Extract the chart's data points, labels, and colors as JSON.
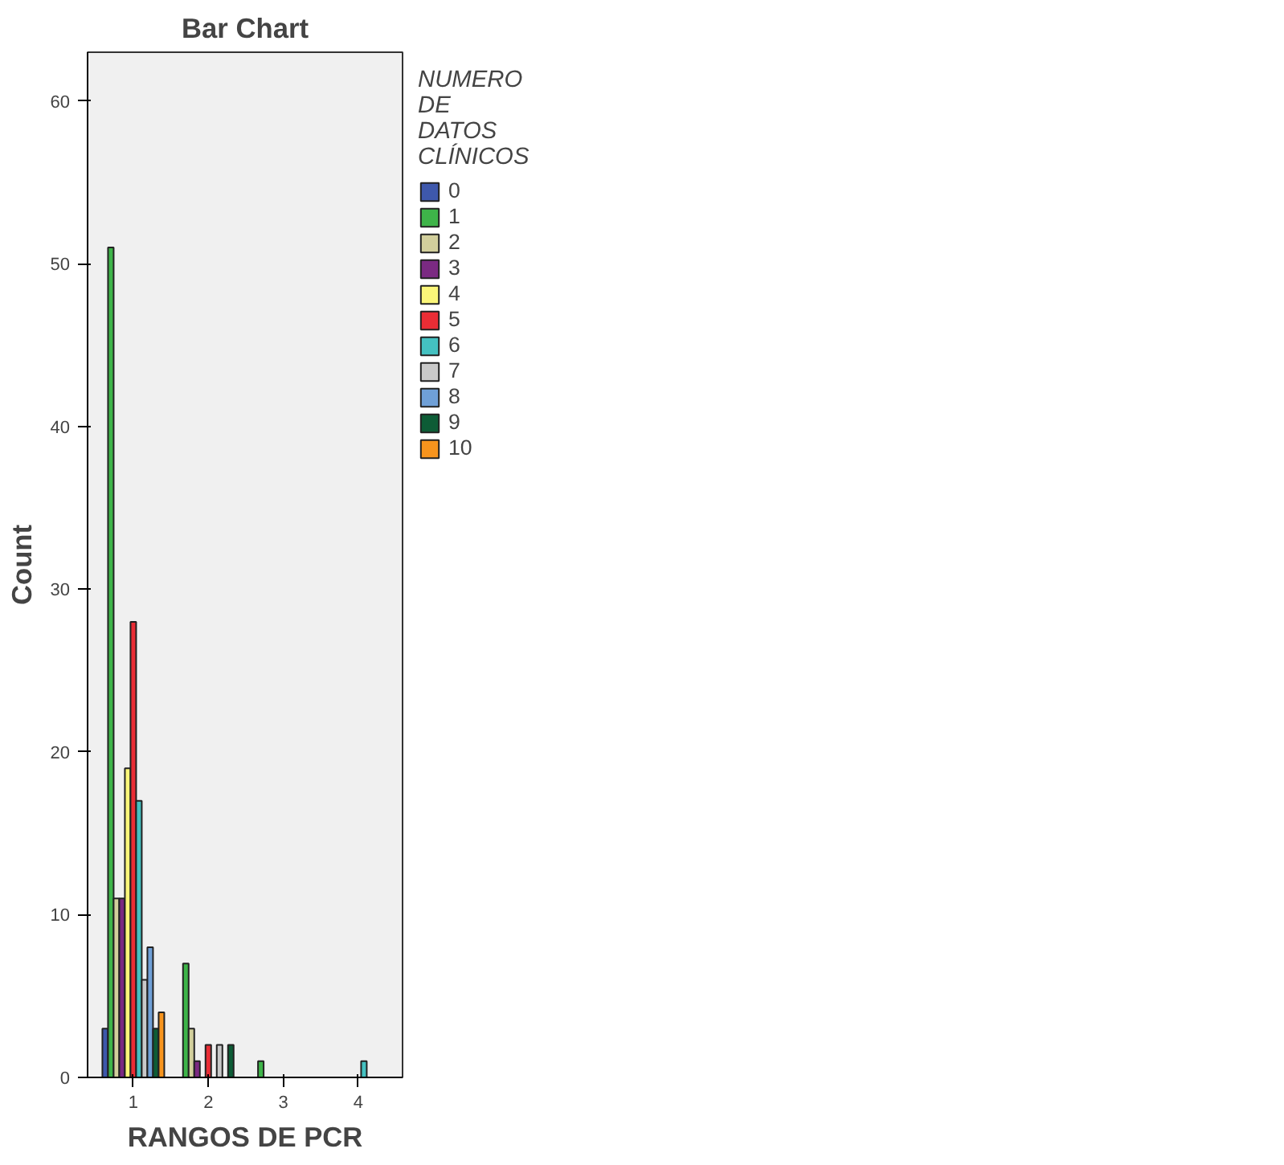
{
  "chart_data": {
    "type": "bar",
    "title": "Bar Chart",
    "xlabel": "RANGOS DE PCR",
    "ylabel": "Count",
    "legend_title": "NUMERO DE DATOS CLÍNICOS",
    "categories": [
      "1",
      "2",
      "3",
      "4"
    ],
    "ylim": [
      0,
      63
    ],
    "yticks": [
      0,
      10,
      20,
      30,
      40,
      50,
      60
    ],
    "grid": false,
    "legend": "right",
    "series": [
      {
        "name": "0",
        "color": "#3e58ac",
        "values": [
          3,
          null,
          null,
          null
        ]
      },
      {
        "name": "1",
        "color": "#3eb449",
        "values": [
          51,
          7,
          1,
          null
        ]
      },
      {
        "name": "2",
        "color": "#d2cf9c",
        "values": [
          11,
          3,
          null,
          null
        ]
      },
      {
        "name": "3",
        "color": "#7b2a82",
        "values": [
          11,
          1,
          null,
          null
        ]
      },
      {
        "name": "4",
        "color": "#fbf679",
        "values": [
          19,
          null,
          null,
          null
        ]
      },
      {
        "name": "5",
        "color": "#ea2d35",
        "values": [
          28,
          2,
          null,
          null
        ]
      },
      {
        "name": "6",
        "color": "#44c1c1",
        "values": [
          17,
          null,
          null,
          1
        ]
      },
      {
        "name": "7",
        "color": "#c9c9c9",
        "values": [
          6,
          2,
          null,
          null
        ]
      },
      {
        "name": "8",
        "color": "#6fa0d7",
        "values": [
          8,
          null,
          null,
          null
        ]
      },
      {
        "name": "9",
        "color": "#0d5c36",
        "values": [
          3,
          2,
          null,
          null
        ]
      },
      {
        "name": "10",
        "color": "#f7941d",
        "values": [
          4,
          null,
          null,
          null
        ]
      }
    ]
  }
}
